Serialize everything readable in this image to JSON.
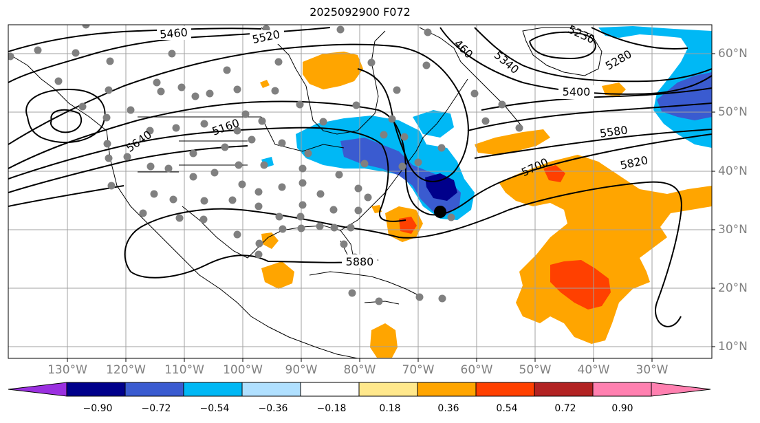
{
  "title": "2025092900 F072",
  "lon_labels": [
    "130°W",
    "120°W",
    "110°W",
    "100°W",
    "90°W",
    "80°W",
    "70°W",
    "60°W",
    "50°W",
    "40°W",
    "30°W"
  ],
  "lat_labels": [
    "60°N",
    "50°N",
    "40°N",
    "30°N",
    "20°N",
    "10°N"
  ],
  "colorbar": {
    "ticks": [
      "−0.90",
      "−0.72",
      "−0.54",
      "−0.36",
      "−0.18",
      "0.18",
      "0.36",
      "0.54",
      "0.72",
      "0.90"
    ],
    "colors": [
      "#9b30e0",
      "#00008b",
      "#3a5bd0",
      "#00b8f5",
      "#b0e0ff",
      "#ffffff",
      "#ffe88c",
      "#ffa500",
      "#ff4000",
      "#b22222",
      "#ff80b0"
    ]
  },
  "contours": {
    "labels": [
      "5460",
      "5520",
      "5230",
      "5340",
      "5280",
      "5400",
      "5160",
      "5640",
      "5580",
      "5700",
      "5820",
      "5880",
      "460"
    ]
  },
  "marker": "cyclone-center-dot"
}
